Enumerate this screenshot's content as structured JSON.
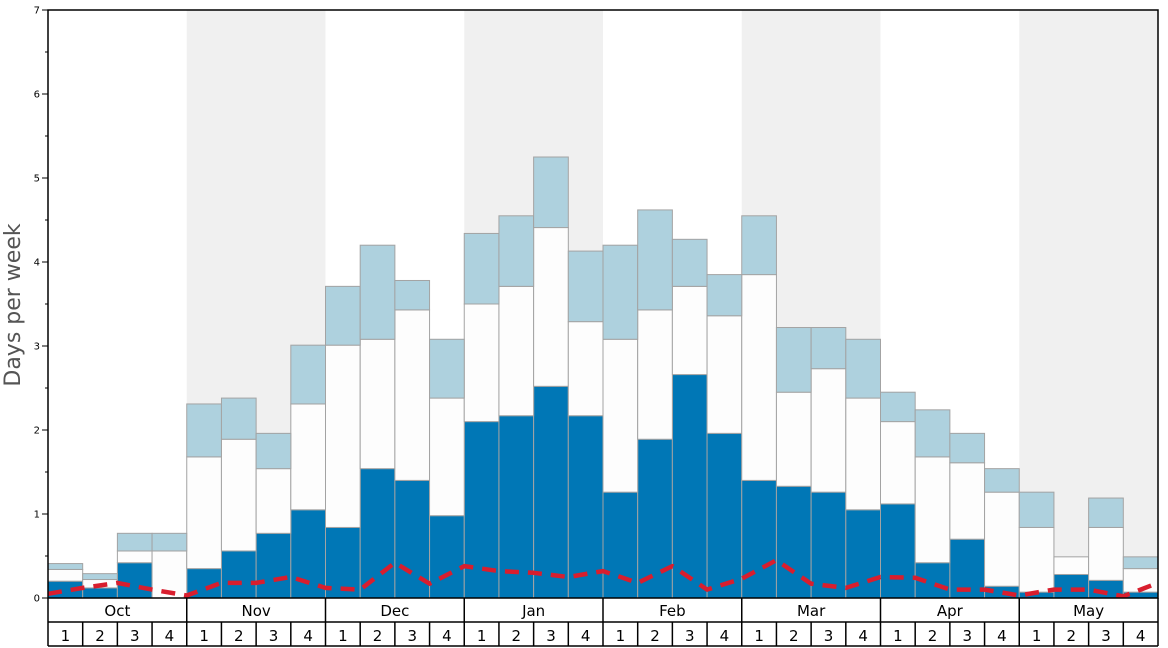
{
  "chart_data": {
    "type": "bar",
    "ylabel": "Days per week",
    "ylim": [
      0,
      7
    ],
    "yticks": [
      "0",
      "1",
      "2",
      "3",
      "4",
      "5",
      "6",
      "7"
    ],
    "months": [
      "Oct",
      "Nov",
      "Dec",
      "Jan",
      "Feb",
      "Mar",
      "Apr",
      "May"
    ],
    "weeks_per_month": [
      "1",
      "2",
      "3",
      "4"
    ],
    "stacked": true,
    "colors": {
      "bottom": "#0077b6",
      "middle": "#fdfdfd",
      "top": "#aed1de",
      "line": "#d81e2e",
      "band": "#f0f0f0"
    },
    "series": [
      {
        "role": "bottom",
        "values": [
          0.2,
          0.12,
          0.42,
          0.0,
          0.35,
          0.56,
          0.77,
          1.05,
          0.84,
          1.54,
          1.4,
          0.98,
          2.1,
          2.17,
          2.52,
          2.17,
          1.26,
          1.89,
          2.66,
          1.96,
          1.4,
          1.33,
          1.26,
          1.05,
          1.12,
          0.42,
          0.7,
          0.14,
          0.07,
          0.28,
          0.21,
          0.07
        ]
      },
      {
        "role": "middle",
        "values": [
          0.14,
          0.1,
          0.14,
          0.56,
          1.33,
          1.33,
          0.77,
          1.26,
          2.17,
          1.54,
          2.03,
          1.4,
          1.4,
          1.54,
          1.89,
          1.12,
          1.82,
          1.54,
          1.05,
          1.4,
          2.45,
          1.12,
          1.47,
          1.33,
          0.98,
          1.26,
          0.91,
          1.12,
          0.77,
          0.21,
          0.63,
          0.28
        ]
      },
      {
        "role": "top",
        "values": [
          0.07,
          0.07,
          0.21,
          0.21,
          0.63,
          0.49,
          0.42,
          0.7,
          0.7,
          1.12,
          0.35,
          0.7,
          0.84,
          0.84,
          0.84,
          0.84,
          1.12,
          1.19,
          0.56,
          0.49,
          0.7,
          0.77,
          0.49,
          0.7,
          0.35,
          0.56,
          0.35,
          0.28,
          0.42,
          0.0,
          0.35,
          0.14
        ]
      },
      {
        "role": "line",
        "values": [
          0.05,
          0.12,
          0.18,
          0.1,
          0.03,
          0.18,
          0.18,
          0.25,
          0.12,
          0.1,
          0.42,
          0.17,
          0.38,
          0.32,
          0.3,
          0.25,
          0.32,
          0.18,
          0.38,
          0.1,
          0.23,
          0.45,
          0.17,
          0.12,
          0.25,
          0.24,
          0.1,
          0.1,
          0.03,
          0.1,
          0.1,
          0.02,
          0.18
        ]
      }
    ]
  }
}
